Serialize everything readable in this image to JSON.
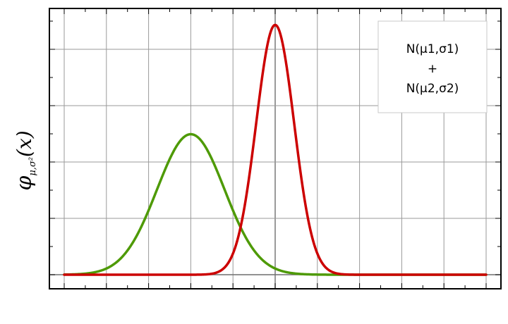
{
  "chart_data": {
    "type": "line",
    "title": "",
    "xlabel": "",
    "ylabel": {
      "symbol": "φ",
      "subscript": "μ,σ²",
      "arg": "(x)"
    },
    "xlim": [
      -5,
      5
    ],
    "ylim": [
      0,
      0.9
    ],
    "grid": true,
    "legend": {
      "placement": "top-right",
      "lines": [
        "N(μ1,σ1)",
        "+",
        "N(μ2,σ2)"
      ]
    },
    "series": [
      {
        "mu": -2,
        "sigma": 0.8,
        "color": "#4e9a06"
      },
      {
        "mu": 0,
        "sigma": 0.45,
        "color": "#cc0000"
      }
    ]
  }
}
